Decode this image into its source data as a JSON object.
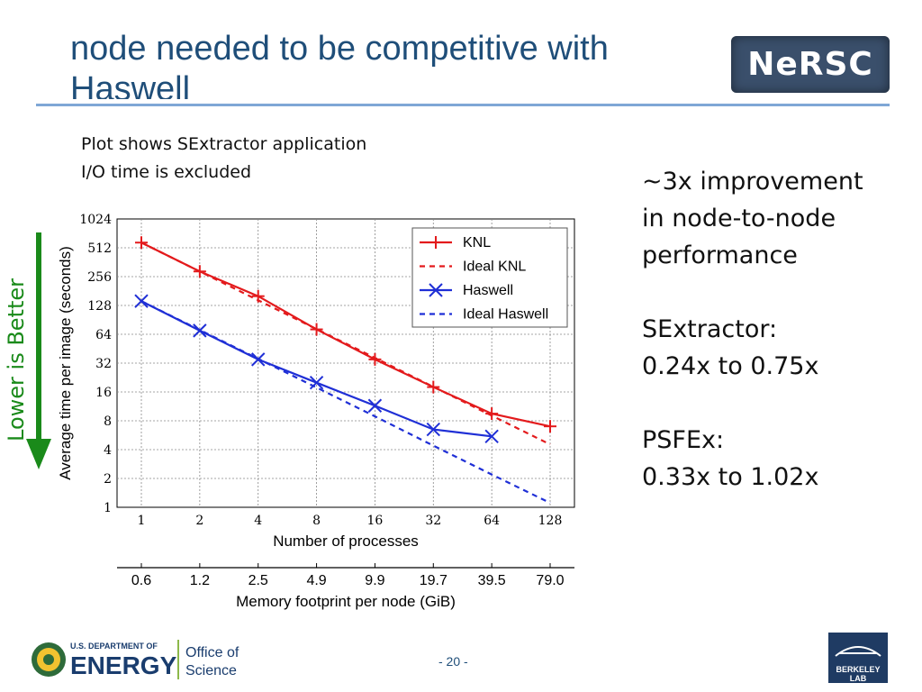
{
  "slide": {
    "title_line1": "node needed to be competitive with",
    "title_line2": "Haswell",
    "notes": [
      "Plot shows SExtractor application",
      "I/O time is excluded"
    ],
    "side_text": [
      "~3x improvement",
      "in node-to-node",
      "performance",
      "SExtractor:",
      "0.24x to 0.75x",
      "PSFEx:",
      "0.33x to 1.02x"
    ],
    "lower_label": "Lower is Better",
    "page_number": "- 20 -",
    "nersc_logo": "NeRSC",
    "doe_logo": {
      "line1": "U.S. DEPARTMENT OF",
      "line2": "ENERGY",
      "office1": "Office of",
      "office2": "Science"
    },
    "berkeley_logo": "BERKELEY LAB",
    "colors": {
      "title": "#1f4e79",
      "knl": "#e31a1c",
      "haswell": "#1f2fd6",
      "lower_arrow": "#1a8a1a"
    }
  },
  "chart_data": {
    "type": "line",
    "title": "",
    "xlabel": "Number of processes",
    "ylabel": "Average time per image (seconds)",
    "x": [
      1,
      2,
      4,
      8,
      16,
      32,
      64,
      128
    ],
    "x_ticks": [
      "1",
      "2",
      "4",
      "8",
      "16",
      "32",
      "64",
      "128"
    ],
    "y_ticks": [
      "1",
      "2",
      "4",
      "8",
      "16",
      "32",
      "64",
      "128",
      "256",
      "512",
      "1024"
    ],
    "y_scale": "log2",
    "ylim": [
      1,
      1024
    ],
    "grid": true,
    "legend_position": "top-right",
    "series": [
      {
        "name": "KNL",
        "style": "solid",
        "marker": "plus",
        "color": "#e31a1c",
        "x": [
          1,
          2,
          4,
          8,
          16,
          32,
          64,
          128
        ],
        "y": [
          580,
          290,
          160,
          72,
          35,
          18,
          9.5,
          7
        ]
      },
      {
        "name": "Ideal KNL",
        "style": "dashed",
        "marker": "none",
        "color": "#e31a1c",
        "x": [
          1,
          2,
          4,
          8,
          16,
          32,
          64,
          128
        ],
        "y": [
          580,
          290,
          145,
          72.5,
          36.3,
          18.1,
          9.06,
          4.53
        ]
      },
      {
        "name": "Haswell",
        "style": "solid",
        "marker": "x",
        "color": "#1f2fd6",
        "x": [
          1,
          2,
          4,
          8,
          16,
          32,
          64
        ],
        "y": [
          142,
          70,
          35,
          20,
          11.5,
          6.5,
          5.5
        ]
      },
      {
        "name": "Ideal Haswell",
        "style": "dashed",
        "marker": "none",
        "color": "#1f2fd6",
        "x": [
          1,
          2,
          4,
          8,
          16,
          32,
          64,
          128
        ],
        "y": [
          142,
          71,
          35.5,
          17.8,
          8.9,
          4.4,
          2.2,
          1.11
        ]
      }
    ],
    "secondary_axis": {
      "label": "Memory footprint per node (GiB)",
      "ticks": [
        "0.6",
        "1.2",
        "2.5",
        "4.9",
        "9.9",
        "19.7",
        "39.5",
        "79.0"
      ]
    }
  }
}
